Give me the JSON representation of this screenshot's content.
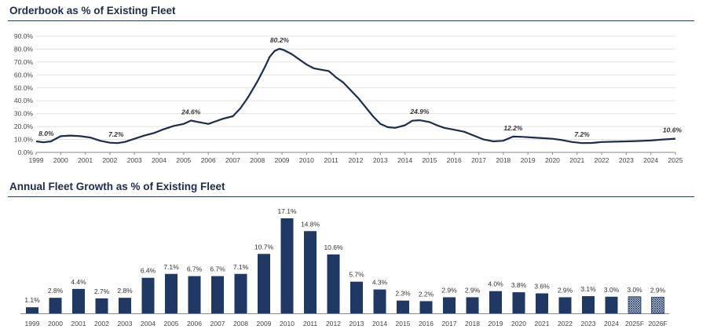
{
  "charts": {
    "orderbook_title": "Orderbook as % of Existing Fleet",
    "fleet_title": "Annual Fleet Growth as % of Existing Fleet"
  },
  "colors": {
    "navy": "#1c2c4c",
    "bar": "#1f3864",
    "grid": "#d9d9d9"
  },
  "chart_data": [
    {
      "type": "line",
      "title": "Orderbook as % of Existing Fleet",
      "ylim": [
        0,
        90
      ],
      "y_ticks": [
        "0.0%",
        "10.0%",
        "20.0%",
        "30.0%",
        "40.0%",
        "50.0%",
        "60.0%",
        "70.0%",
        "80.0%",
        "90.0%"
      ],
      "x_ticks": [
        "1999",
        "2000",
        "2001",
        "2002",
        "2003",
        "2004",
        "2005",
        "2006",
        "2007",
        "2008",
        "2009",
        "2010",
        "2011",
        "2012",
        "2013",
        "2014",
        "2015",
        "2016",
        "2017",
        "2018",
        "2019",
        "2020",
        "2021",
        "2022",
        "2023",
        "2024",
        "2025"
      ],
      "series": [
        {
          "name": "Orderbook",
          "x": [
            1999.0,
            1999.3,
            1999.6,
            2000.0,
            2000.4,
            2000.8,
            2001.2,
            2001.6,
            2002.0,
            2002.3,
            2002.6,
            2003.0,
            2003.4,
            2003.8,
            2004.2,
            2004.6,
            2005.0,
            2005.3,
            2005.6,
            2006.0,
            2006.3,
            2006.6,
            2007.0,
            2007.3,
            2007.6,
            2008.0,
            2008.3,
            2008.5,
            2008.7,
            2008.9,
            2009.1,
            2009.4,
            2009.7,
            2010.0,
            2010.3,
            2010.6,
            2010.9,
            2011.2,
            2011.5,
            2011.8,
            2012.1,
            2012.4,
            2012.7,
            2013.0,
            2013.3,
            2013.6,
            2014.0,
            2014.3,
            2014.6,
            2015.0,
            2015.3,
            2015.6,
            2016.0,
            2016.4,
            2016.8,
            2017.2,
            2017.6,
            2018.0,
            2018.4,
            2018.8,
            2019.2,
            2019.6,
            2020.0,
            2020.4,
            2020.8,
            2021.2,
            2021.6,
            2022.0,
            2022.5,
            2023.0,
            2023.5,
            2024.0,
            2024.5,
            2025.0
          ],
          "y": [
            8.5,
            7.8,
            8.5,
            12.5,
            13.0,
            12.5,
            11.5,
            9.0,
            7.5,
            7.2,
            8.0,
            10.5,
            13.0,
            15.0,
            18.0,
            20.5,
            22.0,
            24.6,
            23.5,
            22.0,
            24.0,
            26.0,
            28.0,
            34.0,
            42.0,
            55.0,
            66.0,
            74.0,
            78.5,
            80.2,
            79.0,
            76.0,
            72.0,
            68.0,
            65.0,
            64.0,
            63.0,
            58.0,
            54.0,
            48.0,
            42.0,
            35.0,
            28.0,
            22.0,
            19.5,
            19.0,
            21.0,
            24.5,
            24.9,
            23.5,
            21.0,
            19.0,
            17.5,
            16.0,
            13.0,
            10.0,
            8.5,
            9.0,
            12.2,
            12.0,
            11.5,
            11.0,
            10.5,
            9.5,
            8.0,
            7.2,
            7.3,
            8.0,
            8.3,
            8.5,
            8.8,
            9.2,
            10.0,
            10.6
          ]
        }
      ],
      "annotations": [
        {
          "x": 1999.1,
          "y": 8.0,
          "label": "8.0%"
        },
        {
          "x": 2002.25,
          "y": 7.2,
          "label": "7.2%"
        },
        {
          "x": 2005.3,
          "y": 24.6,
          "label": "24.6%"
        },
        {
          "x": 2008.9,
          "y": 80.2,
          "label": "80.2%"
        },
        {
          "x": 2014.6,
          "y": 24.9,
          "label": "24.9%"
        },
        {
          "x": 2018.4,
          "y": 12.2,
          "label": "12.2%"
        },
        {
          "x": 2021.2,
          "y": 7.2,
          "label": "7.2%"
        },
        {
          "x": 2025.0,
          "y": 10.6,
          "label": "10.6%"
        }
      ]
    },
    {
      "type": "bar",
      "title": "Annual Fleet Growth as % of Existing Fleet",
      "categories": [
        "1999",
        "2000",
        "2001",
        "2002",
        "2003",
        "2004",
        "2005",
        "2006",
        "2007",
        "2008",
        "2009",
        "2010",
        "2011",
        "2012",
        "2013",
        "2014",
        "2015",
        "2016",
        "2017",
        "2018",
        "2019",
        "2020",
        "2021",
        "2022",
        "2023",
        "2024",
        "2025F",
        "2026F"
      ],
      "values": [
        1.1,
        2.8,
        4.4,
        2.7,
        2.8,
        6.4,
        7.1,
        6.7,
        6.7,
        7.1,
        10.7,
        17.1,
        14.8,
        10.6,
        5.7,
        4.3,
        2.3,
        2.2,
        2.9,
        2.9,
        4.0,
        3.8,
        3.6,
        2.9,
        3.1,
        3.0,
        3.0,
        2.9
      ],
      "labels": [
        "1.1%",
        "2.8%",
        "4.4%",
        "2.7%",
        "2.8%",
        "6.4%",
        "7.1%",
        "6.7%",
        "6.7%",
        "7.1%",
        "10.7%",
        "17.1%",
        "14.8%",
        "10.6%",
        "5.7%",
        "4.3%",
        "2.3%",
        "2.2%",
        "2.9%",
        "2.9%",
        "4.0%",
        "3.8%",
        "3.6%",
        "2.9%",
        "3.1%",
        "3.0%",
        "3.0%",
        "2.9%"
      ],
      "forecast": [
        false,
        false,
        false,
        false,
        false,
        false,
        false,
        false,
        false,
        false,
        false,
        false,
        false,
        false,
        false,
        false,
        false,
        false,
        false,
        false,
        false,
        false,
        false,
        false,
        false,
        false,
        true,
        true
      ]
    }
  ]
}
